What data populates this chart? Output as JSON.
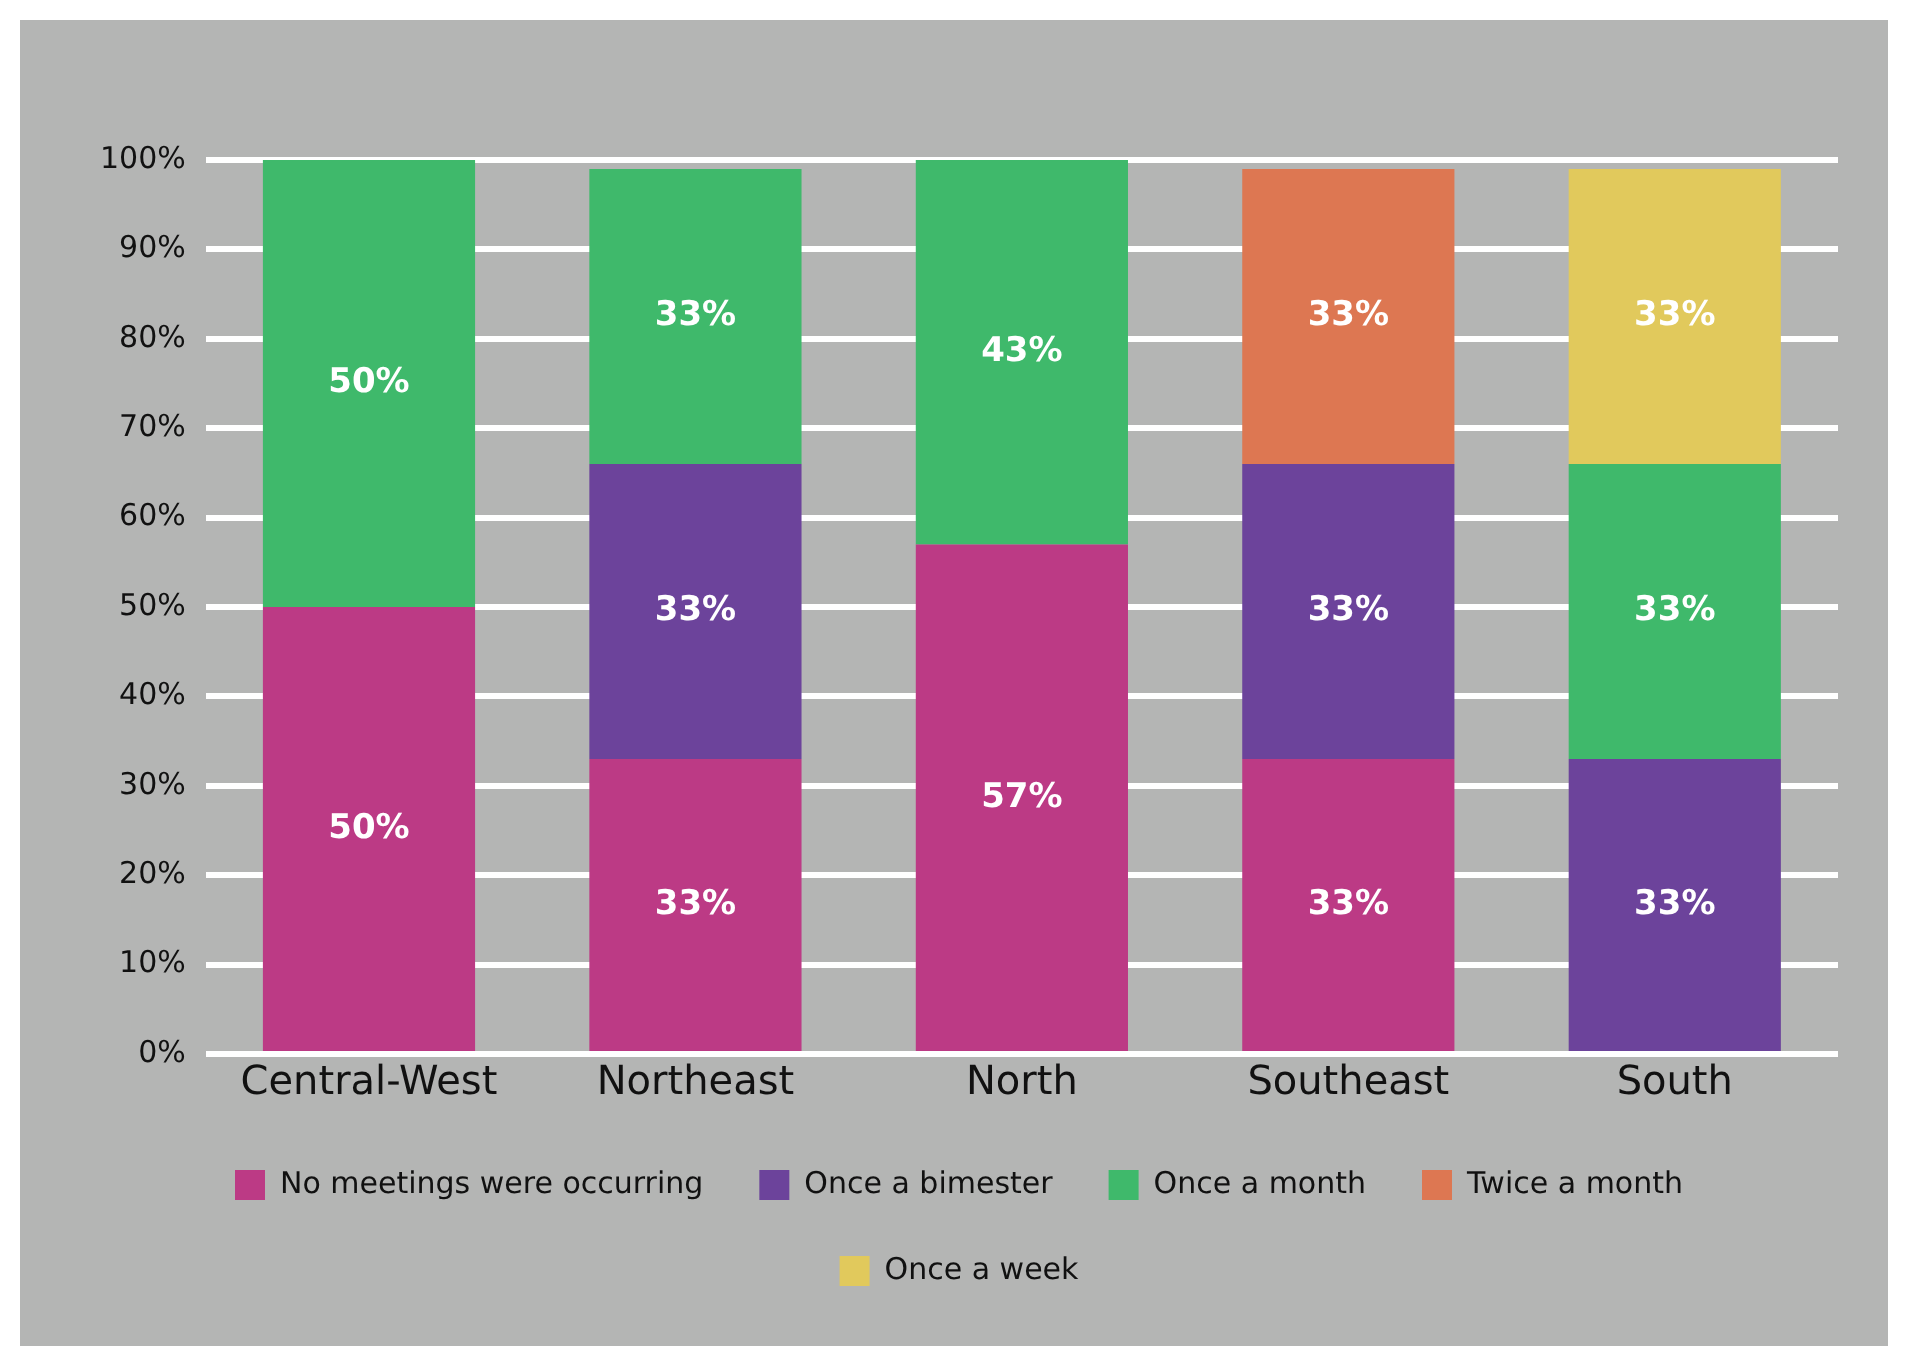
{
  "chart_data": {
    "type": "bar",
    "stacked": true,
    "categories": [
      "Central-West",
      "Northeast",
      "North",
      "Southeast",
      "South"
    ],
    "series": [
      {
        "name": "No meetings were occurring",
        "color": "#bc3a85",
        "values": [
          50,
          33,
          57,
          33,
          null
        ],
        "value_labels": [
          "50%",
          "33%",
          "57%",
          "33%",
          null
        ]
      },
      {
        "name": "Once a bimester",
        "color": "#6c439b",
        "values": [
          null,
          33,
          null,
          33,
          33
        ],
        "value_labels": [
          null,
          "33%",
          null,
          "33%",
          "33%"
        ]
      },
      {
        "name": "Once a month",
        "color": "#3fb96b",
        "values": [
          50,
          33,
          43,
          null,
          33
        ],
        "value_labels": [
          "50%",
          "33%",
          "43%",
          null,
          "33%"
        ]
      },
      {
        "name": "Twice a month",
        "color": "#dd7752",
        "values": [
          null,
          null,
          null,
          33,
          null
        ],
        "value_labels": [
          null,
          null,
          null,
          "33%",
          null
        ]
      },
      {
        "name": "Once a week",
        "color": "#e1c95c",
        "values": [
          null,
          null,
          null,
          null,
          33
        ],
        "value_labels": [
          null,
          null,
          null,
          null,
          "33%"
        ]
      }
    ],
    "ylim": [
      0,
      100
    ],
    "yticks": [
      {
        "value": 0,
        "label": "0%"
      },
      {
        "value": 10,
        "label": "10%"
      },
      {
        "value": 20,
        "label": "20%"
      },
      {
        "value": 30,
        "label": "30%"
      },
      {
        "value": 40,
        "label": "40%"
      },
      {
        "value": 50,
        "label": "50%"
      },
      {
        "value": 60,
        "label": "60%"
      },
      {
        "value": 70,
        "label": "70%"
      },
      {
        "value": 80,
        "label": "80%"
      },
      {
        "value": 90,
        "label": "90%"
      },
      {
        "value": 100,
        "label": "100%"
      }
    ],
    "grid": "y",
    "legend": "bottom"
  }
}
